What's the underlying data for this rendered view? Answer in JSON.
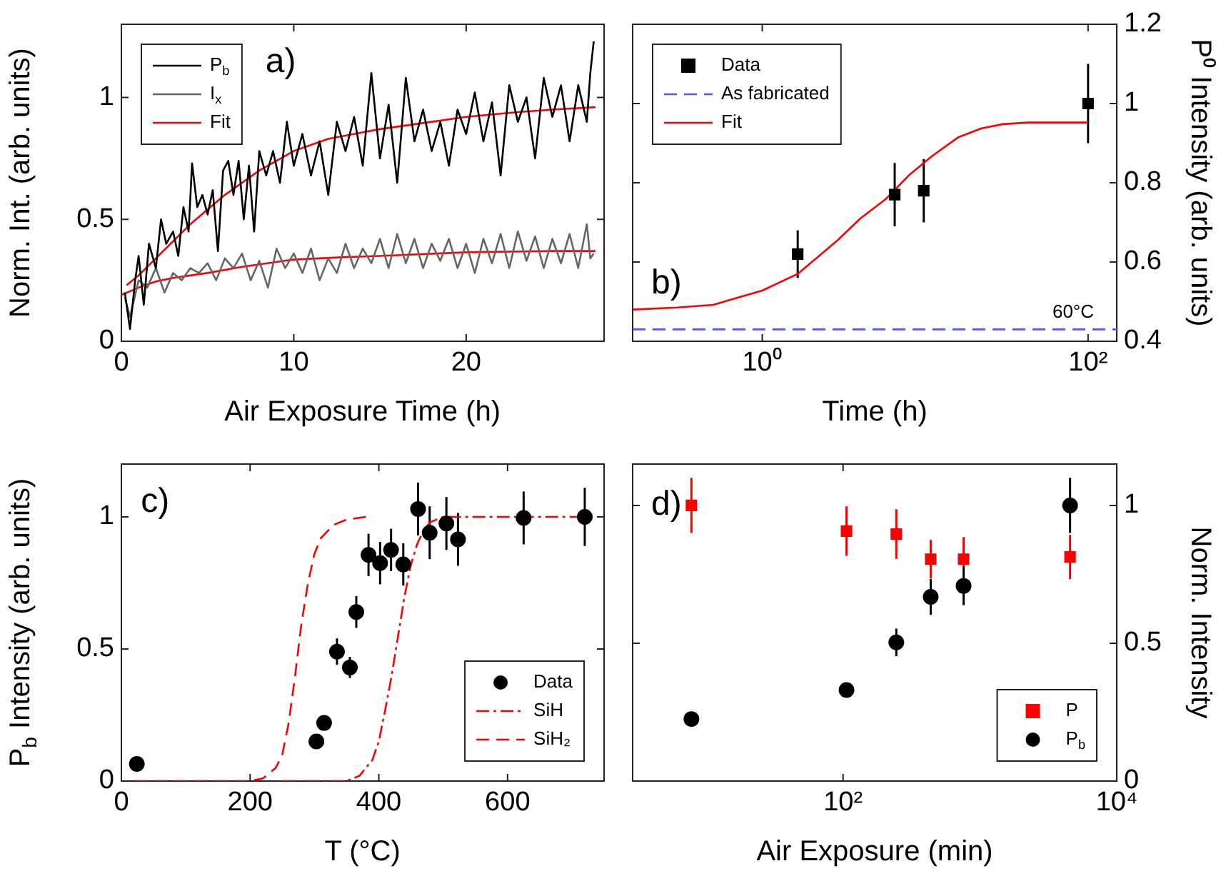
{
  "chart_data": [
    {
      "type": "line",
      "xlabel": "Air Exposure Time (h)",
      "ylabel": "Norm. Int. (arb. units)",
      "xlim": [
        0,
        28
      ],
      "ylim": [
        0,
        1.3
      ],
      "xticks": [
        0,
        10,
        20
      ],
      "yticks": [
        0,
        0.5,
        1
      ],
      "legend": "top left",
      "annotations": [
        "a)"
      ],
      "series": [
        {
          "name": "P$_{b}$",
          "color": "#000000",
          "x": [
            0.2,
            0.5,
            0.8,
            1.0,
            1.3,
            1.6,
            2.0,
            2.3,
            2.6,
            3.0,
            3.3,
            3.6,
            3.9,
            4.1,
            4.4,
            4.7,
            5.0,
            5.3,
            5.6,
            5.9,
            6.2,
            6.5,
            6.8,
            7.1,
            7.4,
            7.7,
            8.0,
            8.4,
            8.8,
            9.2,
            9.6,
            10,
            10.5,
            11,
            11.5,
            12,
            12.5,
            13,
            13.5,
            14,
            14.5,
            15,
            15.5,
            16,
            16.5,
            17,
            17.5,
            18,
            18.5,
            19,
            19.5,
            20,
            20.5,
            21,
            21.5,
            22,
            22.5,
            23,
            23.5,
            24,
            24.5,
            25,
            25.5,
            26,
            26.5,
            27,
            27.2,
            27.4
          ],
          "values": [
            0.2,
            0.05,
            0.25,
            0.35,
            0.15,
            0.4,
            0.3,
            0.5,
            0.4,
            0.45,
            0.35,
            0.55,
            0.45,
            0.73,
            0.55,
            0.6,
            0.52,
            0.62,
            0.37,
            0.7,
            0.74,
            0.6,
            0.74,
            0.5,
            0.72,
            0.45,
            0.78,
            0.68,
            0.78,
            0.65,
            0.9,
            0.72,
            0.85,
            0.68,
            0.82,
            0.6,
            0.9,
            0.78,
            0.92,
            0.72,
            1.1,
            0.75,
            0.97,
            0.65,
            1.08,
            0.82,
            0.95,
            0.78,
            0.9,
            0.72,
            0.95,
            0.85,
            1.02,
            0.82,
            0.98,
            0.68,
            1.05,
            0.9,
            1.0,
            0.75,
            1.08,
            0.92,
            1.05,
            0.82,
            1.05,
            0.9,
            1.1,
            1.23
          ]
        },
        {
          "name": "I$_{x}$",
          "color": "#666666",
          "x": [
            0.2,
            0.5,
            1,
            1.5,
            2,
            2.5,
            3,
            3.5,
            4,
            4.5,
            5,
            5.5,
            6,
            6.5,
            7,
            7.5,
            8,
            8.5,
            9,
            9.5,
            10,
            10.5,
            11,
            11.5,
            12,
            12.5,
            13,
            13.5,
            14,
            14.5,
            15,
            15.5,
            16,
            16.5,
            17,
            17.5,
            18,
            18.5,
            19,
            19.5,
            20,
            20.5,
            21,
            21.5,
            22,
            22.5,
            23,
            23.5,
            24,
            24.5,
            25,
            25.5,
            26,
            26.5,
            27,
            27.2,
            27.4
          ],
          "values": [
            0.18,
            0.1,
            0.25,
            0.22,
            0.3,
            0.2,
            0.28,
            0.25,
            0.3,
            0.28,
            0.32,
            0.25,
            0.34,
            0.3,
            0.36,
            0.25,
            0.33,
            0.22,
            0.38,
            0.3,
            0.36,
            0.28,
            0.38,
            0.25,
            0.34,
            0.28,
            0.4,
            0.3,
            0.38,
            0.32,
            0.42,
            0.3,
            0.44,
            0.32,
            0.42,
            0.3,
            0.4,
            0.33,
            0.42,
            0.3,
            0.4,
            0.28,
            0.42,
            0.32,
            0.44,
            0.3,
            0.45,
            0.33,
            0.43,
            0.3,
            0.42,
            0.32,
            0.44,
            0.3,
            0.48,
            0.34,
            0.36
          ]
        },
        {
          "name": "Fit",
          "color": "#ff0000",
          "x": [
            0.3,
            1,
            2,
            3,
            4,
            5,
            6,
            8,
            10,
            12,
            15,
            18,
            20,
            23,
            25,
            27.5
          ],
          "values": [
            0.23,
            0.27,
            0.34,
            0.41,
            0.48,
            0.54,
            0.6,
            0.7,
            0.78,
            0.83,
            0.87,
            0.9,
            0.92,
            0.94,
            0.95,
            0.96
          ]
        },
        {
          "color": "#ff0000",
          "x": [
            0,
            1,
            2,
            3,
            5,
            7,
            10,
            13,
            15,
            20,
            25,
            27.5
          ],
          "values": [
            0.19,
            0.22,
            0.245,
            0.26,
            0.28,
            0.305,
            0.335,
            0.345,
            0.35,
            0.365,
            0.37,
            0.37
          ]
        }
      ]
    },
    {
      "type": "scatter",
      "xlabel": "Time (h)",
      "y2label": "P⁰ Intensity (arb. units)",
      "log": "x",
      "xlim": [
        0.16,
        150
      ],
      "y2lim": [
        0.4,
        1.2
      ],
      "xticks": [
        {
          "value": 1,
          "label": "10⁰"
        },
        {
          "value": 100,
          "label": "10²"
        }
      ],
      "y2ticks": [
        0.4,
        0.6,
        0.8,
        1,
        1.2
      ],
      "legend": "top left",
      "annotations": [
        "b)",
        "60°C"
      ],
      "series": [
        {
          "name": "Data",
          "color": "#000000",
          "axis": "y2",
          "marker": "square",
          "x": [
            1.65,
            6.5,
            9.8,
            100
          ],
          "values": [
            0.62,
            0.77,
            0.78,
            1.0
          ],
          "errors": [
            0.06,
            0.08,
            0.08,
            0.1
          ]
        },
        {
          "name": "As fabricated",
          "type": "line",
          "color": "#5555ff",
          "axis": "y2",
          "line_style": "dashed",
          "x": [
            0.16,
            150
          ],
          "values": [
            0.43,
            0.43
          ]
        },
        {
          "name": "Fit",
          "type": "line",
          "color": "#ff0000",
          "axis": "y2",
          "x": [
            0.16,
            0.3,
            0.5,
            1,
            1.65,
            2.9,
            4,
            5.7,
            8,
            11,
            16,
            22,
            30,
            43,
            100
          ],
          "values": [
            0.48,
            0.485,
            0.492,
            0.528,
            0.57,
            0.655,
            0.71,
            0.758,
            0.82,
            0.867,
            0.915,
            0.937,
            0.948,
            0.952,
            0.952
          ]
        }
      ]
    },
    {
      "type": "scatter",
      "xlabel": "T (°C)",
      "ylabel": "P$_{b}$ Intensity (arb. units)",
      "xlim": [
        0,
        750
      ],
      "ylim": [
        0,
        1.2
      ],
      "xticks": [
        0,
        200,
        400,
        600
      ],
      "yticks": [
        0,
        0.5,
        1
      ],
      "legend": "bottom right",
      "annotations": [
        "c)"
      ],
      "series": [
        {
          "name": "Data",
          "color": "#000000",
          "marker": "circle",
          "x": [
            24,
            303,
            315,
            335,
            355,
            365,
            384,
            402,
            419,
            438,
            461,
            479,
            505,
            523,
            625,
            720
          ],
          "values": [
            0.065,
            0.15,
            0.22,
            0.49,
            0.43,
            0.64,
            0.856,
            0.825,
            0.875,
            0.82,
            1.03,
            0.94,
            0.975,
            0.915,
            0.996,
            1.0
          ],
          "errors": [
            null,
            null,
            null,
            0.05,
            0.04,
            0.06,
            0.08,
            0.08,
            0.08,
            0.08,
            0.1,
            0.1,
            0.1,
            0.1,
            0.1,
            0.11
          ]
        },
        {
          "name": "SiH",
          "type": "line",
          "color": "#ff0000",
          "line_style": "dashdot",
          "x": [
            250,
            350,
            370,
            390,
            400,
            410,
            420,
            430,
            440,
            450,
            460,
            470,
            480,
            500,
            718
          ],
          "values": [
            0,
            0,
            0.02,
            0.08,
            0.15,
            0.27,
            0.4,
            0.55,
            0.7,
            0.82,
            0.9,
            0.95,
            0.98,
            1.0,
            1.0
          ]
        },
        {
          "name": "SiH₂",
          "type": "line",
          "color": "#ff0000",
          "line_style": "dashed",
          "x": [
            20,
            200,
            220,
            240,
            250,
            260,
            270,
            280,
            290,
            300,
            310,
            330,
            350,
            380
          ],
          "values": [
            0,
            0,
            0.01,
            0.05,
            0.1,
            0.22,
            0.4,
            0.6,
            0.75,
            0.86,
            0.92,
            0.97,
            0.99,
            1.0
          ]
        }
      ]
    },
    {
      "type": "scatter",
      "xlabel": "Air Exposure (min)",
      "y2label": "Norm. Intensity",
      "log": "x",
      "xlim": [
        2.9,
        10000
      ],
      "y2lim": [
        0,
        1.15
      ],
      "xticks": [
        {
          "value": 100,
          "label": "10²"
        },
        {
          "value": 10000,
          "label": "10⁴"
        }
      ],
      "y2ticks": [
        0,
        0.5,
        1
      ],
      "legend": "bottom right",
      "annotations": [
        "d)"
      ],
      "series": [
        {
          "name": "P",
          "color": "#ff0000",
          "axis": "y2",
          "marker": "square",
          "x": [
            7.8,
            106,
            245,
            437,
            760,
            4560
          ],
          "values": [
            1.0,
            0.907,
            0.896,
            0.805,
            0.805,
            0.813
          ],
          "errors": [
            0.1,
            0.09,
            0.09,
            0.07,
            0.08,
            0.08
          ]
        },
        {
          "name": "P$_{b}$",
          "color": "#000000",
          "axis": "y2",
          "marker": "circle",
          "x": [
            7.8,
            106,
            245,
            437,
            760,
            4560
          ],
          "values": [
            0.225,
            0.33,
            0.503,
            0.668,
            0.708,
            1.0
          ],
          "errors": [
            null,
            null,
            0.05,
            0.065,
            0.07,
            0.1
          ]
        }
      ]
    }
  ]
}
